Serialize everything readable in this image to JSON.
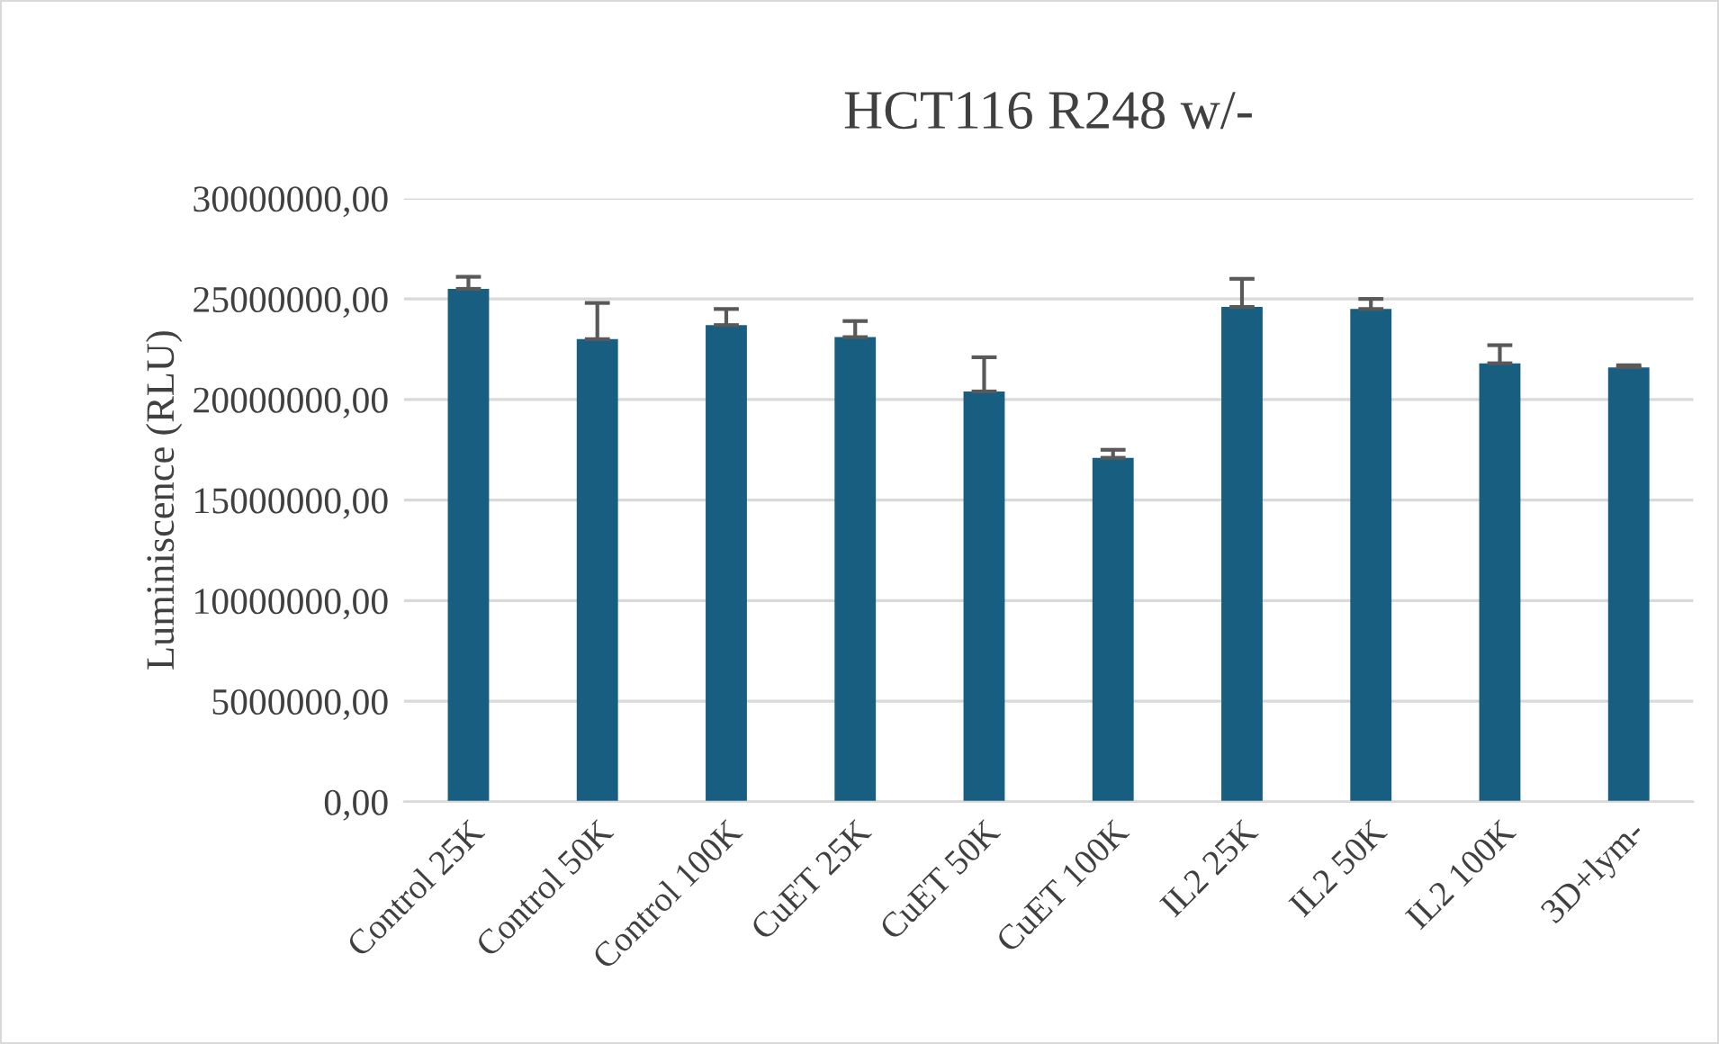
{
  "chart_data": {
    "type": "bar",
    "title": "HCT116 R248 w/-",
    "ylabel": "Luminiscence (RLU)",
    "categories": [
      "Control 25K",
      "Control 50K",
      "Control 100K",
      "CuET 25K",
      "CuET 50K",
      "CuET 100K",
      "IL2 25K",
      "IL2 50K",
      "IL2 100K",
      "3D+lym-"
    ],
    "values": [
      25500000,
      23000000,
      23700000,
      23100000,
      20400000,
      17100000,
      24600000,
      24500000,
      21800000,
      21600000
    ],
    "errors": [
      [
        25500000,
        26100000
      ],
      [
        23000000,
        24800000
      ],
      [
        23700000,
        24500000
      ],
      [
        23100000,
        23900000
      ],
      [
        20400000,
        22100000
      ],
      [
        17100000,
        17500000
      ],
      [
        24600000,
        26000000
      ],
      [
        24500000,
        25000000
      ],
      [
        21800000,
        22700000
      ],
      [
        21600000,
        21700000
      ]
    ],
    "color": "#175e80",
    "ylim": [
      0,
      30000000
    ],
    "yticks": [
      {
        "value": 0,
        "label": "0,00"
      },
      {
        "value": 5000000,
        "label": "5000000,00"
      },
      {
        "value": 10000000,
        "label": "10000000,00"
      },
      {
        "value": 15000000,
        "label": "15000000,00"
      },
      {
        "value": 20000000,
        "label": "20000000,00"
      },
      {
        "value": 25000000,
        "label": "25000000,00"
      },
      {
        "value": 30000000,
        "label": "30000000,00"
      }
    ],
    "grid": "y"
  }
}
